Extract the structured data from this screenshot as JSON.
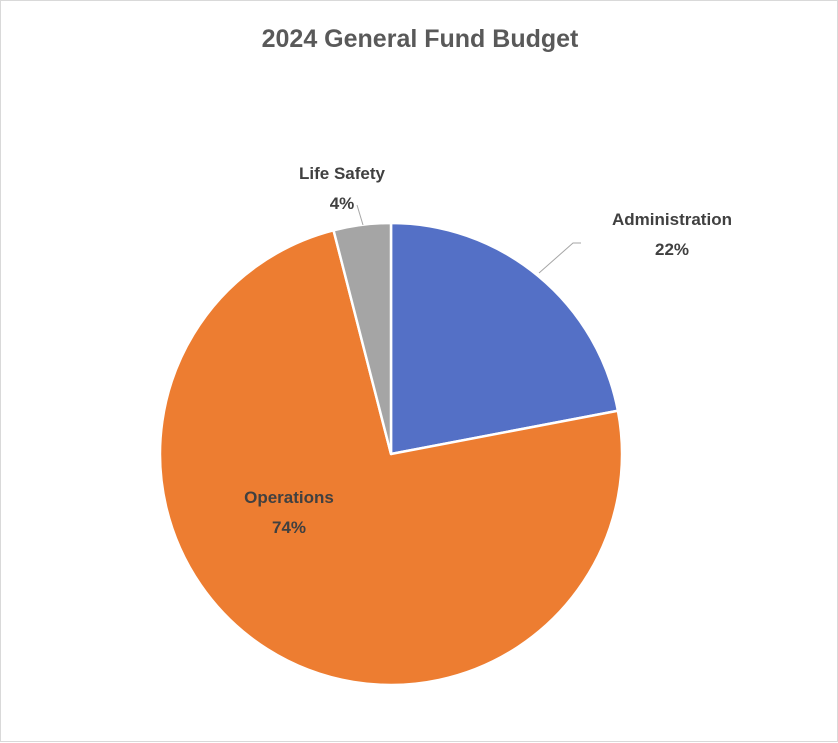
{
  "chart_data": {
    "type": "pie",
    "title": "2024 General Fund Budget",
    "categories": [
      "Administration",
      "Operations",
      "Life Safety"
    ],
    "values": [
      22,
      74,
      4
    ],
    "value_suffix": "%",
    "colors": [
      "#5470c6",
      "#ed7d31",
      "#a5a5a5"
    ],
    "legend": "none",
    "data_labels": "category-and-percent"
  }
}
